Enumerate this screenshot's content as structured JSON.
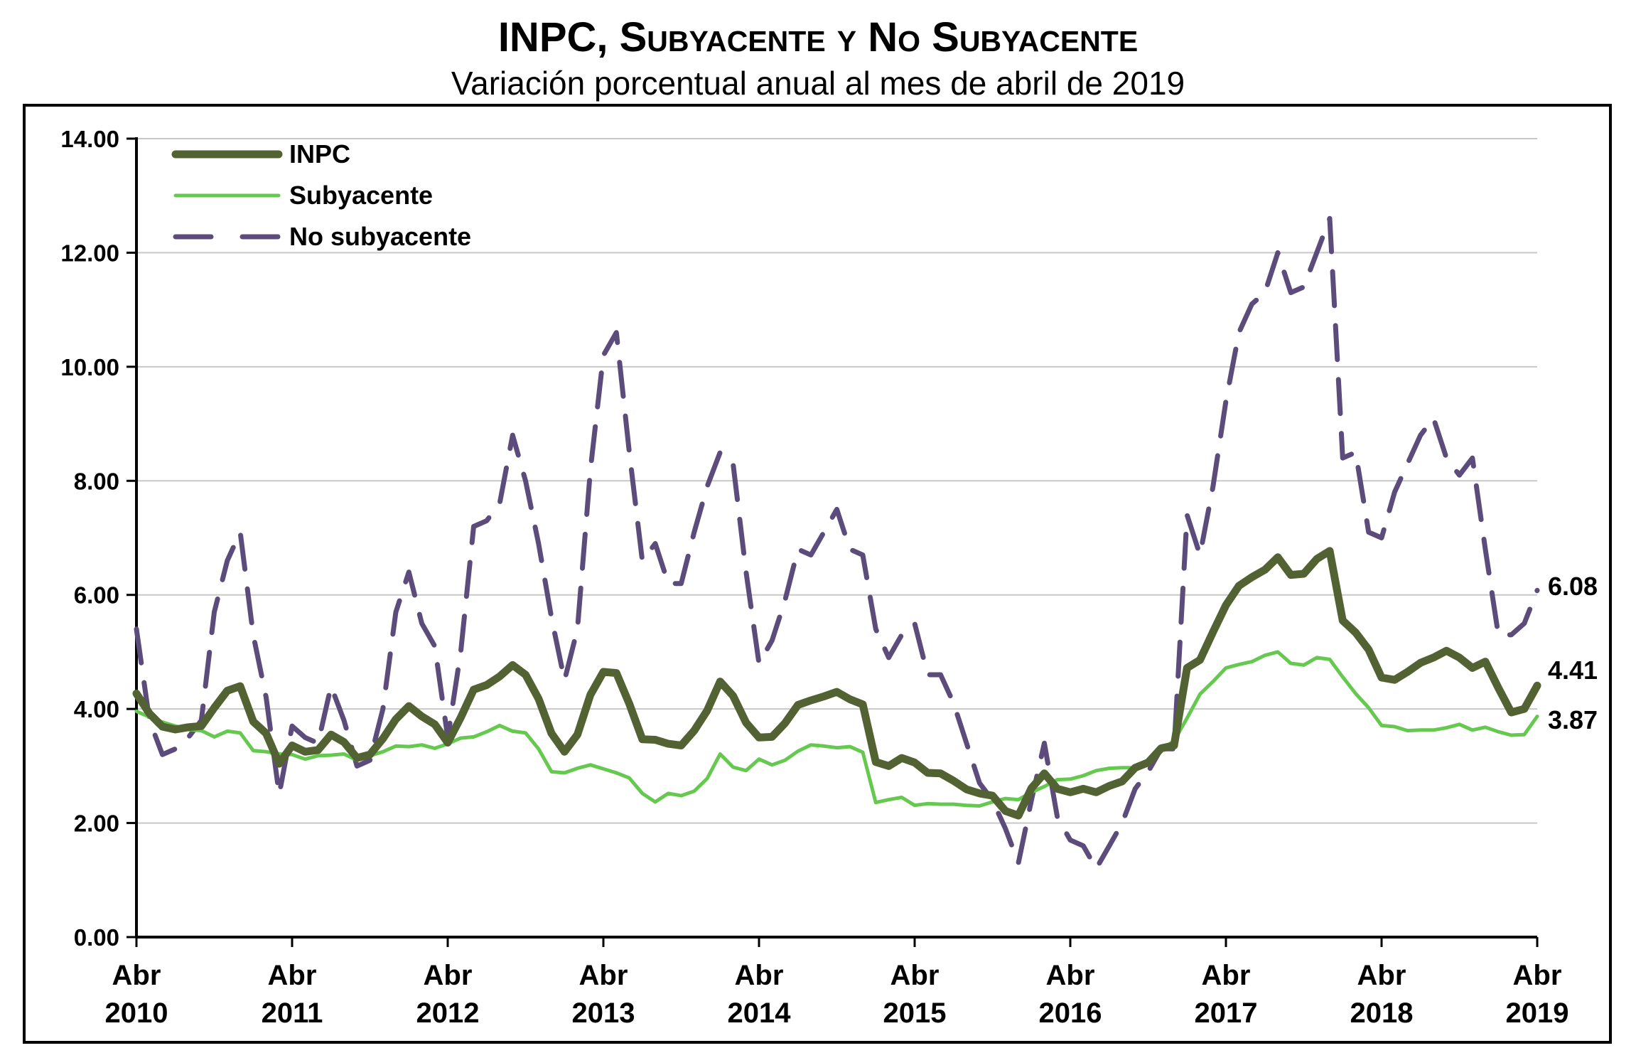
{
  "chart_data": {
    "type": "line",
    "title": "INPC, Subyacente y No Subyacente",
    "subtitle": "Variación porcentual anual al mes de abril de 2019",
    "xlabel": "",
    "ylabel": "",
    "x_start": "Abr 2010",
    "x_end": "Abr 2019",
    "frequency": "monthly",
    "ylim": [
      0,
      14
    ],
    "yticks": [
      "0.00",
      "2.00",
      "4.00",
      "6.00",
      "8.00",
      "10.00",
      "12.00",
      "14.00"
    ],
    "xticks": [
      {
        "month": "Abr",
        "year": "2010"
      },
      {
        "month": "Abr",
        "year": "2011"
      },
      {
        "month": "Abr",
        "year": "2012"
      },
      {
        "month": "Abr",
        "year": "2013"
      },
      {
        "month": "Abr",
        "year": "2014"
      },
      {
        "month": "Abr",
        "year": "2015"
      },
      {
        "month": "Abr",
        "year": "2016"
      },
      {
        "month": "Abr",
        "year": "2017"
      },
      {
        "month": "Abr",
        "year": "2018"
      },
      {
        "month": "Abr",
        "year": "2019"
      }
    ],
    "grid": true,
    "legend_position": "top-left",
    "series": [
      {
        "name": "INPC",
        "color": "#536232",
        "style": "thick-solid",
        "end_label": "4.41",
        "values": [
          4.27,
          3.92,
          3.69,
          3.64,
          3.68,
          3.7,
          4.02,
          4.32,
          4.4,
          3.78,
          3.57,
          3.04,
          3.36,
          3.25,
          3.28,
          3.55,
          3.42,
          3.14,
          3.2,
          3.48,
          3.82,
          4.05,
          3.87,
          3.73,
          3.41,
          3.85,
          4.34,
          4.42,
          4.57,
          4.77,
          4.6,
          4.18,
          3.57,
          3.25,
          3.55,
          4.25,
          4.65,
          4.63,
          4.09,
          3.47,
          3.46,
          3.39,
          3.36,
          3.62,
          3.97,
          4.48,
          4.23,
          3.76,
          3.5,
          3.51,
          3.75,
          4.07,
          4.15,
          4.22,
          4.3,
          4.17,
          4.08,
          3.07,
          3.0,
          3.14,
          3.06,
          2.88,
          2.87,
          2.74,
          2.59,
          2.52,
          2.48,
          2.21,
          2.13,
          2.61,
          2.87,
          2.6,
          2.54,
          2.6,
          2.54,
          2.65,
          2.73,
          2.97,
          3.06,
          3.31,
          3.36,
          4.72,
          4.86,
          5.35,
          5.82,
          6.16,
          6.31,
          6.44,
          6.66,
          6.35,
          6.37,
          6.63,
          6.77,
          5.55,
          5.34,
          5.04,
          4.55,
          4.51,
          4.65,
          4.81,
          4.9,
          5.02,
          4.9,
          4.72,
          4.83,
          4.37,
          3.94,
          4.0,
          4.41
        ]
      },
      {
        "name": "Subyacente",
        "color": "#66c94f",
        "style": "solid",
        "end_label": "3.87",
        "values": [
          3.96,
          3.86,
          3.77,
          3.7,
          3.64,
          3.62,
          3.51,
          3.61,
          3.58,
          3.27,
          3.25,
          3.21,
          3.2,
          3.12,
          3.18,
          3.19,
          3.21,
          3.1,
          3.18,
          3.25,
          3.35,
          3.34,
          3.37,
          3.31,
          3.39,
          3.49,
          3.51,
          3.6,
          3.71,
          3.61,
          3.58,
          3.3,
          2.9,
          2.88,
          2.96,
          3.02,
          2.95,
          2.88,
          2.79,
          2.52,
          2.37,
          2.52,
          2.48,
          2.56,
          2.78,
          3.21,
          2.98,
          2.92,
          3.12,
          3.02,
          3.1,
          3.26,
          3.37,
          3.35,
          3.32,
          3.34,
          3.24,
          2.36,
          2.41,
          2.45,
          2.31,
          2.34,
          2.33,
          2.33,
          2.31,
          2.3,
          2.37,
          2.43,
          2.41,
          2.54,
          2.64,
          2.76,
          2.77,
          2.83,
          2.92,
          2.96,
          2.97,
          2.97,
          3.1,
          3.29,
          3.44,
          3.84,
          4.26,
          4.48,
          4.72,
          4.78,
          4.83,
          4.94,
          5.0,
          4.8,
          4.77,
          4.9,
          4.87,
          4.56,
          4.27,
          4.02,
          3.71,
          3.69,
          3.62,
          3.63,
          3.63,
          3.67,
          3.73,
          3.63,
          3.68,
          3.6,
          3.54,
          3.55,
          3.87
        ]
      },
      {
        "name": "No subyacente",
        "color": "#5b4c7b",
        "style": "dashed",
        "end_label": "6.08",
        "values": [
          5.4,
          3.8,
          3.2,
          3.3,
          3.5,
          3.8,
          5.7,
          6.6,
          7.1,
          5.3,
          4.2,
          2.5,
          3.7,
          3.5,
          3.4,
          4.4,
          3.8,
          3.0,
          3.1,
          4.0,
          5.7,
          6.4,
          5.5,
          5.1,
          3.5,
          5.0,
          7.2,
          7.3,
          7.6,
          8.8,
          8.0,
          6.9,
          5.6,
          4.5,
          5.4,
          8.2,
          10.2,
          10.6,
          8.5,
          6.6,
          6.9,
          6.2,
          6.2,
          7.1,
          7.9,
          8.5,
          8.3,
          6.4,
          4.8,
          5.2,
          5.9,
          6.8,
          6.7,
          7.1,
          7.5,
          6.8,
          6.7,
          5.4,
          4.9,
          5.3,
          5.5,
          4.6,
          4.6,
          4.1,
          3.4,
          2.7,
          2.4,
          1.9,
          1.3,
          2.4,
          3.4,
          2.1,
          1.7,
          1.6,
          1.2,
          1.6,
          2.0,
          2.6,
          2.9,
          3.3,
          3.3,
          7.4,
          6.7,
          7.9,
          9.4,
          10.6,
          11.1,
          11.3,
          12.0,
          11.3,
          11.4,
          12.0,
          12.6,
          8.4,
          8.5,
          7.1,
          7.0,
          7.8,
          8.3,
          8.8,
          9.1,
          8.4,
          8.1,
          8.4,
          6.8,
          5.3,
          5.3,
          5.5,
          6.08
        ]
      }
    ]
  }
}
